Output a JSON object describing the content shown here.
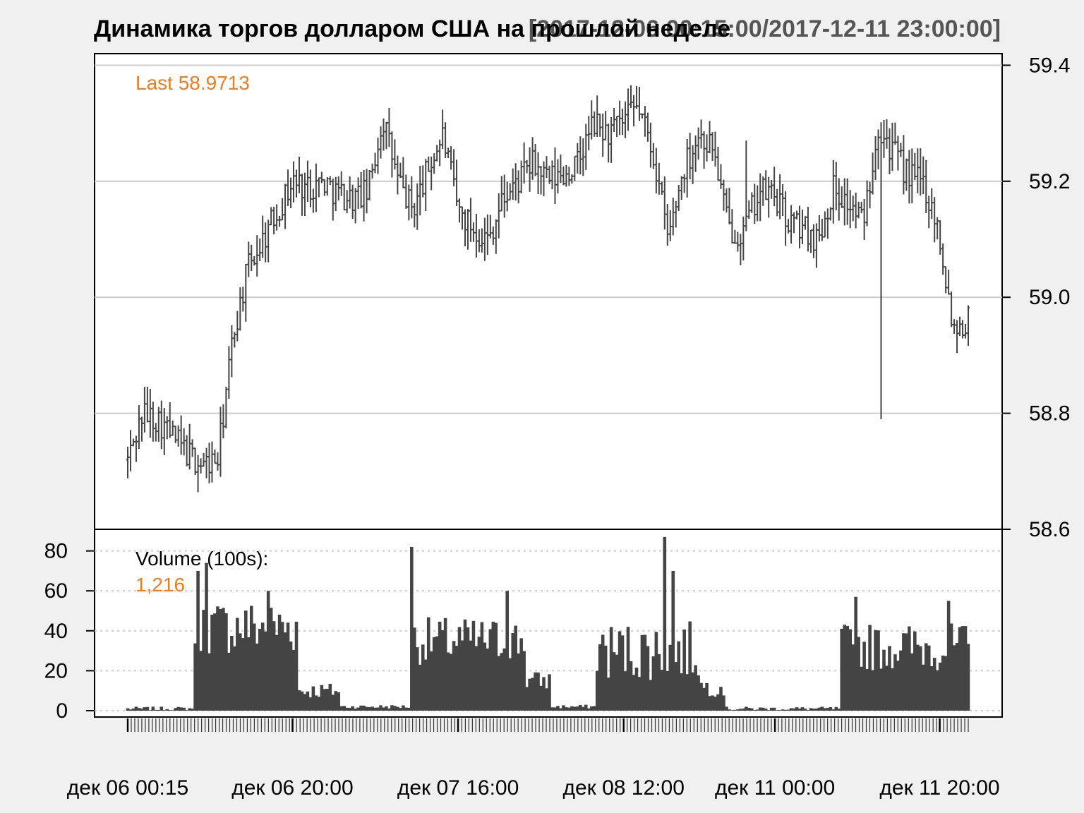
{
  "chart_data": {
    "type": "bar",
    "title": "Динамика торгов долларом США на прошлой неделе",
    "subtitle": "[2017-12-06 00:15:00/2017-12-11 23:00:00]",
    "price_panel": {
      "type": "ohlc",
      "last_label": "Last 58.9713",
      "last_value": 58.9713,
      "ylim": [
        58.6,
        59.42
      ],
      "yticks": [
        "59.4",
        "59.2",
        "59.0",
        "58.8",
        "58.6"
      ],
      "ytick_values": [
        59.4,
        59.2,
        59.0,
        58.8,
        58.6
      ],
      "grid": true,
      "keypoints_index": [
        0,
        1,
        2,
        3,
        4,
        5,
        6,
        7,
        8,
        9,
        10,
        11,
        12,
        13,
        14,
        15,
        16,
        17,
        18,
        19,
        20,
        21,
        22,
        23,
        24,
        25,
        26,
        27,
        28,
        29,
        30,
        31,
        32,
        33,
        34,
        35,
        36,
        37,
        38,
        39,
        40,
        41,
        42,
        43,
        44,
        45,
        46,
        47,
        48,
        49,
        50,
        51,
        52,
        53,
        54,
        55,
        56
      ],
      "keypoints_close": [
        58.72,
        58.8,
        58.79,
        58.76,
        58.73,
        58.71,
        58.72,
        58.93,
        59.05,
        59.1,
        59.15,
        59.2,
        59.19,
        59.2,
        59.18,
        59.17,
        59.18,
        59.31,
        59.2,
        59.15,
        59.22,
        59.28,
        59.15,
        59.12,
        59.1,
        59.17,
        59.2,
        59.23,
        59.2,
        59.21,
        59.23,
        59.3,
        59.28,
        59.3,
        59.33,
        59.25,
        59.1,
        59.22,
        59.28,
        59.26,
        59.12,
        59.11,
        59.18,
        59.18,
        59.13,
        59.12,
        59.1,
        59.19,
        59.16,
        59.13,
        59.3,
        59.25,
        59.21,
        59.2,
        59.12,
        58.95,
        58.96
      ]
    },
    "volume_panel": {
      "label": "Volume (100s):",
      "last_value_label": "1,216",
      "ylim": [
        0,
        88
      ],
      "yticks": [
        "80",
        "60",
        "40",
        "20",
        "0"
      ],
      "ytick_values": [
        80,
        60,
        40,
        20,
        0
      ],
      "grid": true,
      "segments": [
        {
          "start": 0,
          "end": 23,
          "level": 1,
          "amp": 1
        },
        {
          "start": 24,
          "end": 60,
          "level": 42,
          "amp": 14
        },
        {
          "start": 61,
          "end": 75,
          "level": 10,
          "amp": 4
        },
        {
          "start": 76,
          "end": 100,
          "level": 2,
          "amp": 1
        },
        {
          "start": 101,
          "end": 141,
          "level": 35,
          "amp": 12
        },
        {
          "start": 142,
          "end": 150,
          "level": 15,
          "amp": 5
        },
        {
          "start": 151,
          "end": 166,
          "level": 2,
          "amp": 1
        },
        {
          "start": 167,
          "end": 203,
          "level": 30,
          "amp": 15
        },
        {
          "start": 204,
          "end": 212,
          "level": 12,
          "amp": 5
        },
        {
          "start": 213,
          "end": 253,
          "level": 1,
          "amp": 1
        },
        {
          "start": 254,
          "end": 300,
          "level": 32,
          "amp": 12
        }
      ],
      "spikes": {
        "25": 70,
        "28": 74,
        "50": 60,
        "101": 82,
        "135": 60,
        "191": 87,
        "194": 70,
        "259": 57,
        "292": 55
      }
    },
    "x_tick_labels": [
      "дек 06 00:15",
      "дек 06 20:00",
      "дек 07 16:00",
      "дек 08 12:00",
      "дек 11 00:00",
      "дек 11 20:00"
    ],
    "x_tick_positions": [
      0,
      0.196,
      0.393,
      0.59,
      0.77,
      0.966
    ],
    "colors": {
      "background": "#f0f0f0",
      "panel": "#ffffff",
      "bars": "#444444",
      "grid": "#cccccc",
      "accent": "#f07d1a",
      "text": "#000000",
      "subtitle": "#555555"
    }
  }
}
